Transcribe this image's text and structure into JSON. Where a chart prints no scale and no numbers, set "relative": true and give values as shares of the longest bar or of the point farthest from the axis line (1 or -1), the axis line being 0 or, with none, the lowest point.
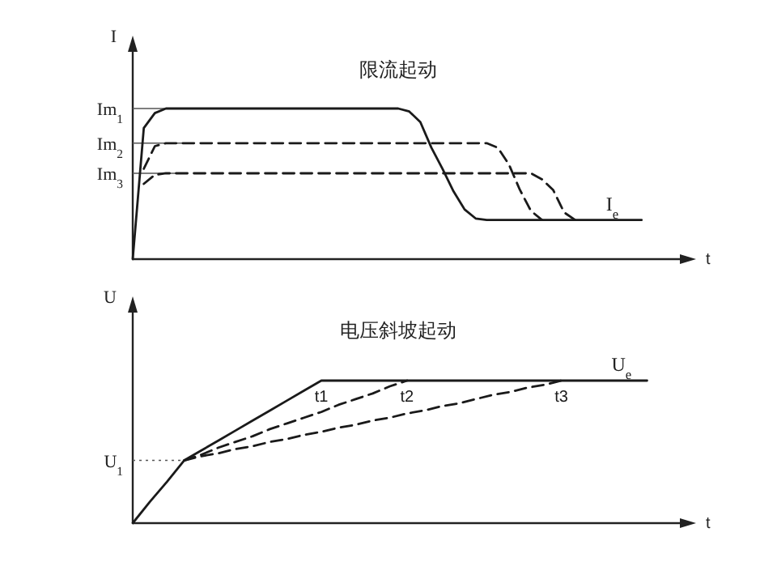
{
  "chart_data": [
    {
      "type": "line",
      "title": "限流起动",
      "xlabel": "t",
      "ylabel": "I",
      "relative": true,
      "categories": [
        null,
        null,
        null,
        null,
        null,
        null,
        null,
        null,
        null,
        null,
        null,
        null,
        null,
        null,
        null,
        null,
        null,
        null,
        null,
        null,
        null,
        null,
        null,
        null,
        null,
        null,
        null,
        null,
        null,
        null,
        null,
        null,
        null,
        null,
        null,
        null,
        null,
        null,
        null,
        null,
        null,
        null,
        null,
        null,
        null,
        null,
        null
      ],
      "series": [
        {
          "color": "#1a1a1a",
          "line_style": "solid",
          "values": [
            0,
            0.87,
            0.97,
            1,
            1,
            1,
            1,
            1,
            1,
            1,
            1,
            1,
            1,
            1,
            1,
            1,
            1,
            1,
            1,
            1,
            1,
            1,
            1,
            1,
            1,
            0.98,
            0.91,
            0.74,
            0.6,
            0.45,
            0.33,
            0.27,
            0.26,
            0.26,
            0.26,
            0.26,
            0.26,
            0.26,
            0.26,
            0.26,
            0.26,
            0.26,
            0.26,
            0.26,
            0.26,
            0.26,
            0.26
          ]
        },
        {
          "color": "#1a1a1a",
          "line_style": "dashed",
          "values": [
            null,
            0.6,
            0.75,
            0.77,
            0.77,
            0.77,
            0.77,
            0.77,
            0.77,
            0.77,
            0.77,
            0.77,
            0.77,
            0.77,
            0.77,
            0.77,
            0.77,
            0.77,
            0.77,
            0.77,
            0.77,
            0.77,
            0.77,
            0.77,
            0.77,
            0.77,
            0.77,
            0.77,
            0.77,
            0.77,
            0.77,
            0.77,
            0.77,
            0.74,
            0.63,
            0.46,
            0.32,
            0.26,
            null,
            null,
            null,
            null,
            null,
            null,
            null,
            null,
            null
          ]
        },
        {
          "color": "#1a1a1a",
          "line_style": "dashed",
          "values": [
            null,
            0.5,
            0.56,
            0.57,
            0.57,
            0.57,
            0.57,
            0.57,
            0.57,
            0.57,
            0.57,
            0.57,
            0.57,
            0.57,
            0.57,
            0.57,
            0.57,
            0.57,
            0.57,
            0.57,
            0.57,
            0.57,
            0.57,
            0.57,
            0.57,
            0.57,
            0.57,
            0.57,
            0.57,
            0.57,
            0.57,
            0.57,
            0.57,
            0.57,
            0.57,
            0.57,
            0.57,
            0.53,
            0.46,
            0.31,
            0.26,
            null,
            null,
            null,
            null,
            null,
            null
          ]
        }
      ],
      "ref_lines": [
        {
          "axis": "y",
          "value": 1,
          "label": "Im$_{1}$",
          "line_style": "solid"
        },
        {
          "axis": "y",
          "value": 0.77,
          "label": "Im$_{2}$",
          "line_style": "solid"
        },
        {
          "axis": "y",
          "value": 0.57,
          "label": "Im$_{3}$",
          "line_style": "solid"
        }
      ],
      "annotations": [
        {
          "text": "I$_{e}$",
          "y": 0.26
        }
      ]
    },
    {
      "type": "line",
      "title": "电压斜坡起动",
      "xlabel": "t",
      "ylabel": "U",
      "relative": true,
      "categories": [
        null,
        null,
        null,
        null,
        null,
        null,
        null,
        null,
        null,
        null,
        null,
        null,
        null,
        null,
        null,
        null,
        null,
        null,
        null,
        null,
        null,
        null,
        null,
        null,
        null,
        null,
        null,
        null,
        null,
        null,
        null
      ],
      "series": [
        {
          "name": "t1",
          "color": "#1a1a1a",
          "line_style": "solid",
          "values": [
            0,
            0.15,
            0.29,
            0.44,
            0.51,
            0.58,
            0.65,
            0.72,
            0.79,
            0.86,
            0.93,
            1,
            1,
            1,
            1,
            1,
            1,
            1,
            1,
            1,
            1,
            1,
            1,
            1,
            1,
            1,
            1,
            1,
            1,
            1,
            1
          ]
        },
        {
          "name": "t2",
          "color": "#1a1a1a",
          "line_style": "dashed",
          "values": [
            null,
            null,
            null,
            0.44,
            0.48,
            0.53,
            0.57,
            0.61,
            0.66,
            0.7,
            0.74,
            0.78,
            0.83,
            0.87,
            0.91,
            0.96,
            1,
            null,
            null,
            null,
            null,
            null,
            null,
            null,
            null,
            null,
            null,
            null,
            null,
            null,
            null
          ]
        },
        {
          "name": "t3",
          "color": "#1a1a1a",
          "line_style": "dashed",
          "values": [
            null,
            null,
            null,
            0.44,
            0.47,
            0.49,
            0.52,
            0.54,
            0.57,
            0.59,
            0.62,
            0.64,
            0.67,
            0.69,
            0.72,
            0.74,
            0.77,
            0.79,
            0.82,
            0.84,
            0.87,
            0.9,
            0.92,
            0.95,
            0.97,
            1,
            null,
            null,
            null,
            null,
            null
          ]
        }
      ],
      "ref_lines": [
        {
          "axis": "y",
          "value": 0.44,
          "label": "U$_{1}$",
          "line_style": "dotted"
        }
      ],
      "annotations": [
        {
          "text": "U$_{e}$",
          "y": 1
        }
      ]
    }
  ]
}
